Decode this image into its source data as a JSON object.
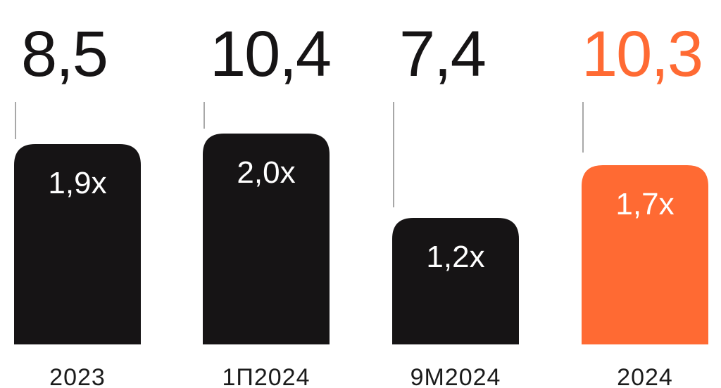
{
  "chart_data": {
    "type": "bar",
    "categories": [
      "2023",
      "1П2024",
      "9М2024",
      "2024"
    ],
    "values": [
      1.9,
      2.0,
      1.2,
      1.7
    ],
    "bar_labels": [
      "1,9x",
      "2,0x",
      "1,2x",
      "1,7x"
    ],
    "top_values": [
      "8,5",
      "10,4",
      "7,4",
      "10,3"
    ],
    "highlight_index": 3,
    "colors": {
      "default": "#161415",
      "highlight": "#ff6a33",
      "leader": "#8a8a8a"
    },
    "ylim": [
      0,
      2.2
    ]
  }
}
